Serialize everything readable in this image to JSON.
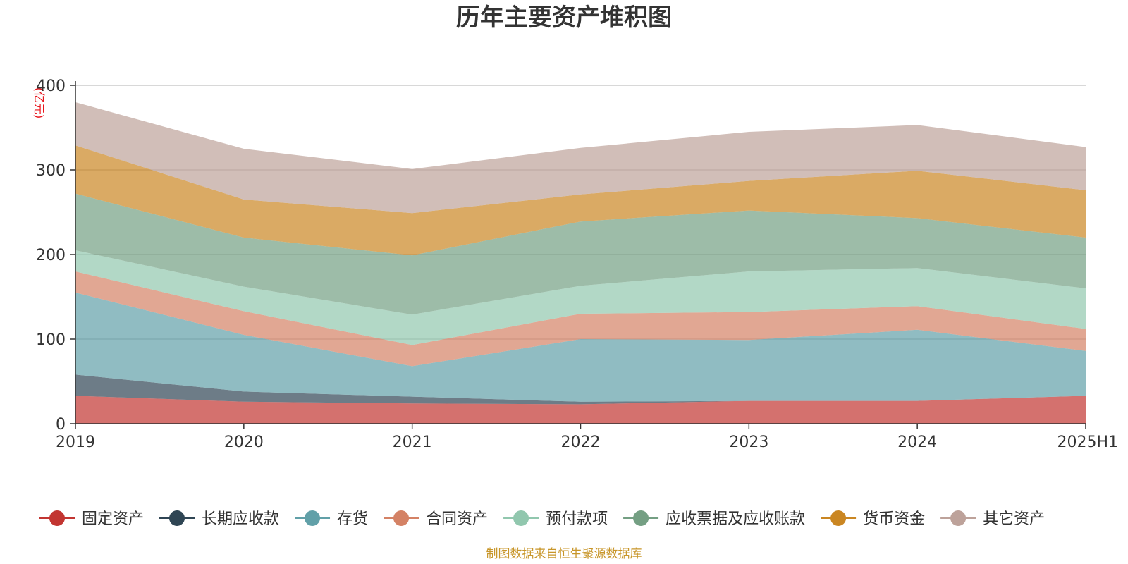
{
  "chart_data": {
    "type": "area",
    "stacked": true,
    "title": "历年主要资产堆积图",
    "unit": "(亿元)",
    "x": [
      "2019",
      "2020",
      "2021",
      "2022",
      "2023",
      "2024",
      "2025H1"
    ],
    "yticks": [
      "0",
      "100",
      "200",
      "300",
      "400"
    ],
    "ylim": [
      0,
      400
    ],
    "grid": true,
    "legend_position": "bottom",
    "series": [
      {
        "name": "固定资产",
        "color": "#c23531",
        "values": [
          33,
          26,
          24,
          23,
          27,
          27,
          33
        ]
      },
      {
        "name": "长期应收款",
        "color": "#2f4554",
        "values": [
          25,
          12,
          8,
          3,
          0,
          0,
          0
        ]
      },
      {
        "name": "存货",
        "color": "#61a0a8",
        "values": [
          97,
          67,
          36,
          74,
          72,
          84,
          53
        ]
      },
      {
        "name": "合同资产",
        "color": "#d48265",
        "values": [
          25,
          28,
          25,
          30,
          33,
          28,
          26
        ]
      },
      {
        "name": "预付款项",
        "color": "#91c7ae",
        "values": [
          25,
          29,
          36,
          33,
          48,
          45,
          48
        ]
      },
      {
        "name": "应收票据及应收账款",
        "color": "#749f83",
        "values": [
          67,
          58,
          70,
          76,
          72,
          59,
          60
        ]
      },
      {
        "name": "货币资金",
        "color": "#ca8622",
        "values": [
          57,
          45,
          50,
          32,
          35,
          56,
          56
        ]
      },
      {
        "name": "其它资产",
        "color": "#bda29a",
        "values": [
          51,
          60,
          52,
          55,
          58,
          54,
          51
        ]
      }
    ],
    "source": "制图数据来自恒生聚源数据库"
  }
}
